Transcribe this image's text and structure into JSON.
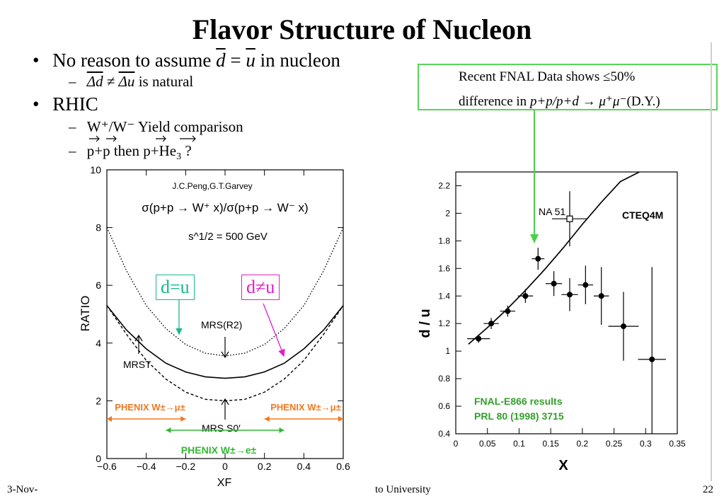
{
  "slide": {
    "title": "Flavor Structure of Nucleon",
    "bullet1": {
      "pre": "No reason to assume ",
      "d": "d",
      "eq": " = ",
      "u": "u",
      "post": " in nucleon"
    },
    "sub1": {
      "dd": "Δd",
      "neq": " ≠ ",
      "du": "Δu",
      "post": " is natural"
    },
    "bullet2": "RHIC",
    "sub2": "W⁺/W⁻ Yield comparison",
    "sub3": {
      "pre": "p+p then p+He",
      "sub": "3",
      "post": " ?"
    },
    "fnal_box": {
      "line1": "Recent FNAL Data shows ≤50%",
      "line2_pre": "difference in ",
      "line2_math": "p+p/p+d → μ⁺μ⁻",
      "line2_post": "(D.Y.)"
    },
    "footer_left": "3-Nov-",
    "footer_mid": "to University",
    "page_number": "22"
  },
  "chart_data": [
    {
      "type": "line",
      "title": "σ(p+p → W⁺ x)/σ(p+p → W⁻ x)",
      "subtitle": "s^1/2 = 500 GeV",
      "credit": "J.C.Peng,G.T.Garvey",
      "xlabel": "XF",
      "ylabel": "RATIO",
      "xlim": [
        -0.6,
        0.6
      ],
      "ylim": [
        0,
        10
      ],
      "xticks": [
        "−0.6",
        "−0.4",
        "−0.2",
        "0",
        "0.2",
        "0.4",
        "0.6"
      ],
      "yticks": [
        "0",
        "2",
        "4",
        "6",
        "8",
        "10"
      ],
      "series": [
        {
          "name": "MRS(R2)",
          "style": "dotted",
          "x": [
            -0.6,
            -0.5,
            -0.4,
            -0.3,
            -0.2,
            -0.1,
            0,
            0.1,
            0.2,
            0.3,
            0.4,
            0.5,
            0.6
          ],
          "y": [
            8.0,
            6.5,
            5.3,
            4.5,
            3.95,
            3.65,
            3.55,
            3.65,
            3.95,
            4.5,
            5.3,
            6.5,
            8.0
          ]
        },
        {
          "name": "MRST",
          "style": "solid",
          "x": [
            -0.6,
            -0.5,
            -0.4,
            -0.3,
            -0.2,
            -0.1,
            0,
            0.1,
            0.2,
            0.3,
            0.4,
            0.5,
            0.6
          ],
          "y": [
            5.3,
            4.45,
            3.8,
            3.3,
            3.0,
            2.83,
            2.78,
            2.83,
            3.0,
            3.3,
            3.8,
            4.45,
            5.3
          ]
        },
        {
          "name": "MRS S0'",
          "style": "dashed",
          "x": [
            -0.6,
            -0.5,
            -0.4,
            -0.3,
            -0.2,
            -0.1,
            0,
            0.1,
            0.2,
            0.3,
            0.4,
            0.5,
            0.6
          ],
          "y": [
            5.3,
            4.3,
            3.4,
            2.75,
            2.3,
            2.05,
            2.0,
            2.05,
            2.3,
            2.75,
            3.4,
            4.3,
            5.3
          ]
        }
      ],
      "labels": {
        "mrst": "MRST",
        "mrsr2": "MRS(R2)",
        "mrss0": "MRS S0′",
        "dequ": "d=u",
        "dneq": "d≠u"
      },
      "phenix": {
        "left": "PHENIX W±→μ±",
        "right": "PHENIX W±→μ±",
        "mid": "PHENIX W±→e±",
        "ranges": [
          [
            -0.6,
            -0.2
          ],
          [
            -0.3,
            0.3
          ],
          [
            0.2,
            0.6
          ]
        ]
      },
      "colors": {
        "dequ": "#17b890",
        "dneq": "#e020c8",
        "orange": "#f07820",
        "green": "#33b833",
        "credit": "#33b833"
      }
    },
    {
      "type": "scatter",
      "ylabel": "d / u",
      "xlabel": "X",
      "xlim": [
        0,
        0.35
      ],
      "ylim": [
        0.4,
        2.3
      ],
      "xticks": [
        "0",
        "0.05",
        "0.1",
        "0.15",
        "0.2",
        "0.25",
        "0.3",
        "0.35"
      ],
      "yticks": [
        "0.4",
        "0.6",
        "0.8",
        "1",
        "1.2",
        "1.4",
        "1.6",
        "1.8",
        "2",
        "2.2"
      ],
      "series": [
        {
          "name": "FNAL-E866 results",
          "points": [
            {
              "x": 0.036,
              "y": 1.09,
              "xerr": 0.018,
              "yerr": 0.03
            },
            {
              "x": 0.056,
              "y": 1.2,
              "xerr": 0.012,
              "yerr": 0.04
            },
            {
              "x": 0.082,
              "y": 1.29,
              "xerr": 0.012,
              "yerr": 0.04
            },
            {
              "x": 0.11,
              "y": 1.4,
              "xerr": 0.012,
              "yerr": 0.05
            },
            {
              "x": 0.13,
              "y": 1.67,
              "xerr": 0.01,
              "yerr": 0.08
            },
            {
              "x": 0.155,
              "y": 1.49,
              "xerr": 0.013,
              "yerr": 0.09
            },
            {
              "x": 0.18,
              "y": 1.41,
              "xerr": 0.013,
              "yerr": 0.12
            },
            {
              "x": 0.205,
              "y": 1.48,
              "xerr": 0.012,
              "yerr": 0.14
            },
            {
              "x": 0.23,
              "y": 1.4,
              "xerr": 0.012,
              "yerr": 0.21
            },
            {
              "x": 0.265,
              "y": 1.18,
              "xerr": 0.024,
              "yerr": 0.25
            },
            {
              "x": 0.31,
              "y": 0.94,
              "xerr": 0.022,
              "yerr": 0.67
            }
          ]
        },
        {
          "name": "NA 51",
          "points": [
            {
              "x": 0.18,
              "y": 1.96,
              "xerr": 0.028,
              "yerr": 0.2
            }
          ]
        },
        {
          "name": "CTEQ4M",
          "x": [
            0.02,
            0.05,
            0.08,
            0.11,
            0.14,
            0.17,
            0.2,
            0.23,
            0.26,
            0.29
          ],
          "y": [
            1.05,
            1.17,
            1.3,
            1.44,
            1.59,
            1.75,
            1.92,
            2.08,
            2.23,
            2.38
          ]
        }
      ],
      "legend": {
        "line1": "FNAL-E866 results",
        "line2": "PRL 80 (1998) 3715"
      },
      "labels": {
        "na51": "NA 51",
        "cteq": "CTEQ4M"
      },
      "colors": {
        "legend": "#33a02c",
        "arrow": "#4ccf4c"
      }
    }
  ]
}
